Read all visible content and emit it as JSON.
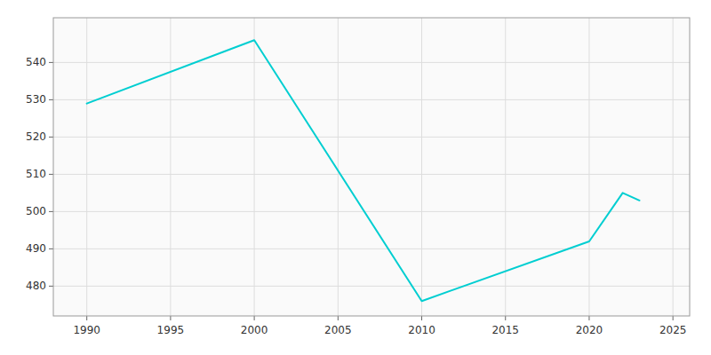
{
  "chart_data": {
    "type": "line",
    "x": [
      1990,
      2000,
      2010,
      2020,
      2022,
      2023
    ],
    "values": [
      529,
      546,
      476,
      492,
      505,
      503
    ],
    "color": "#00CED1",
    "xlim": [
      1988,
      2026
    ],
    "ylim": [
      472,
      552
    ],
    "xticks": [
      1990,
      1995,
      2000,
      2005,
      2010,
      2015,
      2020,
      2025
    ],
    "yticks": [
      480,
      490,
      500,
      510,
      520,
      530,
      540
    ],
    "grid": true
  }
}
